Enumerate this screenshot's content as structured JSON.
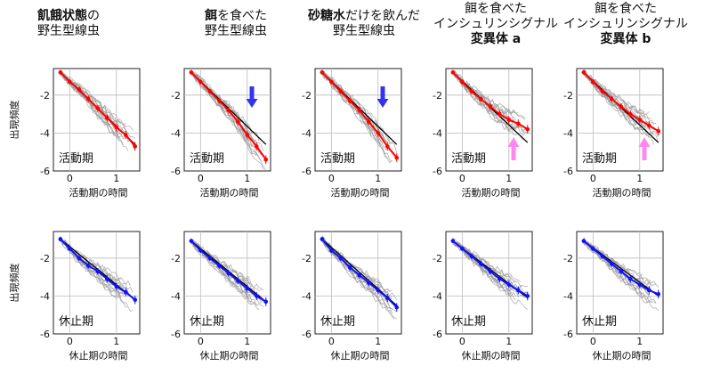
{
  "headers": [
    {
      "parts": [
        {
          "t": "飢餓状態",
          "b": true
        },
        {
          "t": "の",
          "b": false
        }
      ],
      "line2": "野生型線虫"
    },
    {
      "parts": [
        {
          "t": "餌",
          "b": true
        },
        {
          "t": "を食べた",
          "b": false
        }
      ],
      "line2": "野生型線虫"
    },
    {
      "parts": [
        {
          "t": "砂糖水",
          "b": true
        },
        {
          "t": "だけを飲んだ",
          "b": false
        }
      ],
      "line2": "野生型線虫"
    },
    {
      "lines": [
        {
          "t": "餌を食べた",
          "b": false
        },
        {
          "t": "インシュリンシグナル",
          "b": false
        },
        {
          "t": "変異体 a",
          "b": true
        }
      ]
    },
    {
      "lines": [
        {
          "t": "餌を食べた",
          "b": false
        },
        {
          "t": "インシュリンシグナル",
          "b": false
        },
        {
          "t": "変異体 b",
          "b": true
        }
      ]
    }
  ],
  "y_axis_label": "出現頻度",
  "rows": [
    {
      "panel_label": "活動期",
      "x_axis_label": "活動期の時間",
      "series_color": "#ff0000"
    },
    {
      "panel_label": "休止期",
      "x_axis_label": "休止期の時間",
      "series_color": "#1010ff"
    }
  ],
  "y_ticks": [
    "-2",
    "-4",
    "-6"
  ],
  "x_ticks": [
    "0",
    "1"
  ],
  "colors": {
    "red": "#ff0000",
    "blue": "#1010ff",
    "down_arrow": "#3333ee",
    "up_arrow": "#ff88ee",
    "trace": "#9a9a9a",
    "fit": "#000000"
  },
  "chart_data": [
    {
      "type": "line",
      "row": "活動期",
      "panel": 1,
      "xlim": [
        -0.35,
        1.5
      ],
      "ylim": [
        -6,
        -0.6
      ],
      "grid": true,
      "x": [
        -0.2,
        0.0,
        0.2,
        0.4,
        0.6,
        0.8,
        1.0,
        1.2,
        1.4
      ],
      "mean": [
        -0.8,
        -1.3,
        -1.7,
        -2.2,
        -2.7,
        -3.2,
        -3.7,
        -4.1,
        -4.7
      ],
      "fit": [
        [
          -0.2,
          -0.8
        ],
        [
          1.4,
          -4.6
        ]
      ]
    },
    {
      "type": "line",
      "row": "活動期",
      "panel": 2,
      "xlim": [
        -0.35,
        1.5
      ],
      "ylim": [
        -6,
        -0.6
      ],
      "grid": true,
      "x": [
        -0.2,
        0.0,
        0.2,
        0.4,
        0.6,
        0.8,
        1.0,
        1.2,
        1.4
      ],
      "mean": [
        -0.8,
        -1.3,
        -1.8,
        -2.3,
        -2.8,
        -3.4,
        -4.1,
        -4.7,
        -5.4
      ],
      "fit": [
        [
          -0.2,
          -0.8
        ],
        [
          1.4,
          -4.6
        ]
      ],
      "arrow": {
        "dir": "down",
        "x": 1.1
      }
    },
    {
      "type": "line",
      "row": "活動期",
      "panel": 3,
      "xlim": [
        -0.35,
        1.5
      ],
      "ylim": [
        -6,
        -0.6
      ],
      "grid": true,
      "x": [
        -0.2,
        0.0,
        0.2,
        0.4,
        0.6,
        0.8,
        1.0,
        1.2,
        1.4
      ],
      "mean": [
        -0.8,
        -1.3,
        -1.8,
        -2.3,
        -2.8,
        -3.4,
        -4.0,
        -4.7,
        -5.3
      ],
      "fit": [
        [
          -0.2,
          -0.8
        ],
        [
          1.4,
          -4.6
        ]
      ],
      "arrow": {
        "dir": "down",
        "x": 1.1
      }
    },
    {
      "type": "line",
      "row": "活動期",
      "panel": 4,
      "xlim": [
        -0.35,
        1.5
      ],
      "ylim": [
        -6,
        -0.6
      ],
      "grid": true,
      "x": [
        -0.2,
        0.0,
        0.2,
        0.4,
        0.6,
        0.8,
        1.0,
        1.2,
        1.4
      ],
      "mean": [
        -0.8,
        -1.3,
        -1.8,
        -2.2,
        -2.6,
        -3.0,
        -3.3,
        -3.5,
        -3.8
      ],
      "fit": [
        [
          -0.2,
          -0.8
        ],
        [
          1.4,
          -4.5
        ]
      ],
      "arrow": {
        "dir": "up",
        "x": 1.1
      }
    },
    {
      "type": "line",
      "row": "活動期",
      "panel": 5,
      "xlim": [
        -0.35,
        1.5
      ],
      "ylim": [
        -6,
        -0.6
      ],
      "grid": true,
      "x": [
        -0.2,
        0.0,
        0.2,
        0.4,
        0.6,
        0.8,
        1.0,
        1.2,
        1.4
      ],
      "mean": [
        -0.8,
        -1.3,
        -1.8,
        -2.2,
        -2.6,
        -3.0,
        -3.3,
        -3.6,
        -3.9
      ],
      "fit": [
        [
          -0.2,
          -0.8
        ],
        [
          1.4,
          -4.5
        ]
      ],
      "arrow": {
        "dir": "up",
        "x": 1.1
      }
    },
    {
      "type": "line",
      "row": "休止期",
      "panel": 1,
      "xlim": [
        -0.35,
        1.5
      ],
      "ylim": [
        -6,
        -0.6
      ],
      "grid": true,
      "x": [
        -0.2,
        0.0,
        0.2,
        0.4,
        0.6,
        0.8,
        1.0,
        1.2,
        1.4
      ],
      "mean": [
        -1.0,
        -1.5,
        -2.0,
        -2.4,
        -2.7,
        -3.1,
        -3.5,
        -3.8,
        -4.2
      ],
      "fit": [
        [
          -0.2,
          -1.0
        ],
        [
          1.4,
          -4.2
        ]
      ]
    },
    {
      "type": "line",
      "row": "休止期",
      "panel": 2,
      "xlim": [
        -0.35,
        1.5
      ],
      "ylim": [
        -6,
        -0.6
      ],
      "grid": true,
      "x": [
        -0.2,
        0.0,
        0.2,
        0.4,
        0.6,
        0.8,
        1.0,
        1.2,
        1.4
      ],
      "mean": [
        -1.1,
        -1.6,
        -2.0,
        -2.4,
        -2.8,
        -3.2,
        -3.6,
        -4.0,
        -4.3
      ],
      "fit": [
        [
          -0.2,
          -1.1
        ],
        [
          1.4,
          -4.3
        ]
      ]
    },
    {
      "type": "line",
      "row": "休止期",
      "panel": 3,
      "xlim": [
        -0.35,
        1.5
      ],
      "ylim": [
        -6,
        -0.6
      ],
      "grid": true,
      "x": [
        -0.2,
        0.0,
        0.2,
        0.4,
        0.6,
        0.8,
        1.0,
        1.2,
        1.4
      ],
      "mean": [
        -1.0,
        -1.6,
        -2.0,
        -2.5,
        -2.9,
        -3.3,
        -3.7,
        -4.1,
        -4.6
      ],
      "fit": [
        [
          -0.2,
          -1.0
        ],
        [
          1.4,
          -4.5
        ]
      ]
    },
    {
      "type": "line",
      "row": "休止期",
      "panel": 4,
      "xlim": [
        -0.35,
        1.5
      ],
      "ylim": [
        -6,
        -0.6
      ],
      "grid": true,
      "x": [
        -0.2,
        0.0,
        0.2,
        0.4,
        0.6,
        0.8,
        1.0,
        1.2,
        1.4
      ],
      "mean": [
        -1.1,
        -1.5,
        -1.9,
        -2.3,
        -2.7,
        -3.1,
        -3.4,
        -3.7,
        -4.0
      ],
      "fit": [
        [
          -0.2,
          -1.1
        ],
        [
          1.4,
          -4.1
        ]
      ]
    },
    {
      "type": "line",
      "row": "休止期",
      "panel": 5,
      "xlim": [
        -0.35,
        1.5
      ],
      "ylim": [
        -6,
        -0.6
      ],
      "grid": true,
      "x": [
        -0.2,
        0.0,
        0.2,
        0.4,
        0.6,
        0.8,
        1.0,
        1.2,
        1.4
      ],
      "mean": [
        -1.1,
        -1.5,
        -1.9,
        -2.3,
        -2.7,
        -3.1,
        -3.4,
        -3.7,
        -3.9
      ],
      "fit": [
        [
          -0.2,
          -1.1
        ],
        [
          1.4,
          -4.0
        ]
      ]
    }
  ]
}
